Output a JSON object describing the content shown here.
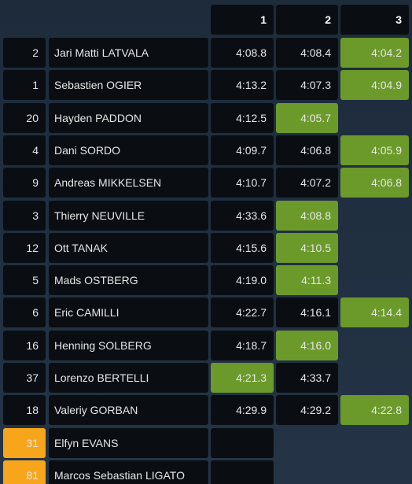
{
  "table": {
    "header": [
      "1",
      "2",
      "3"
    ],
    "rows": [
      {
        "number": 2,
        "name": "Jari Matti LATVALA",
        "times": [
          "4:08.8",
          "4:08.4",
          "4:04.2"
        ]
      },
      {
        "number": 1,
        "name": "Sebastien OGIER",
        "times": [
          "4:13.2",
          "4:07.3",
          "4:04.9"
        ]
      },
      {
        "number": 20,
        "name": "Hayden PADDON",
        "times": [
          "4:12.5",
          "4:05.7"
        ]
      },
      {
        "number": 4,
        "name": "Dani SORDO",
        "times": [
          "4:09.7",
          "4:06.8",
          "4:05.9"
        ]
      },
      {
        "number": 9,
        "name": "Andreas MIKKELSEN",
        "times": [
          "4:10.7",
          "4:07.2",
          "4:06.8"
        ]
      },
      {
        "number": 3,
        "name": "Thierry NEUVILLE",
        "times": [
          "4:33.6",
          "4:08.8"
        ]
      },
      {
        "number": 12,
        "name": "Ott TANAK",
        "times": [
          "4:15.6",
          "4:10.5"
        ]
      },
      {
        "number": 5,
        "name": "Mads OSTBERG",
        "times": [
          "4:19.0",
          "4:11.3"
        ]
      },
      {
        "number": 6,
        "name": "Eric CAMILLI",
        "times": [
          "4:22.7",
          "4:16.1",
          "4:14.4"
        ]
      },
      {
        "number": 16,
        "name": "Henning SOLBERG",
        "times": [
          "4:18.7",
          "4:16.0"
        ]
      },
      {
        "number": 37,
        "name": "Lorenzo BERTELLI",
        "times": [
          "4:21.3",
          "4:33.7"
        ]
      },
      {
        "number": 18,
        "name": "Valeriy GORBAN",
        "times": [
          "4:29.9",
          "4:29.2",
          "4:22.8"
        ]
      },
      {
        "number": 31,
        "name": "Elfyn EVANS",
        "times": [
          null
        ],
        "highlighted": true
      },
      {
        "number": 81,
        "name": "Marcos Sebastian LIGATO",
        "times": [
          null
        ],
        "highlighted": true
      }
    ],
    "best_color": "#6b9a2b",
    "highlight_color": "#f7a61c"
  }
}
